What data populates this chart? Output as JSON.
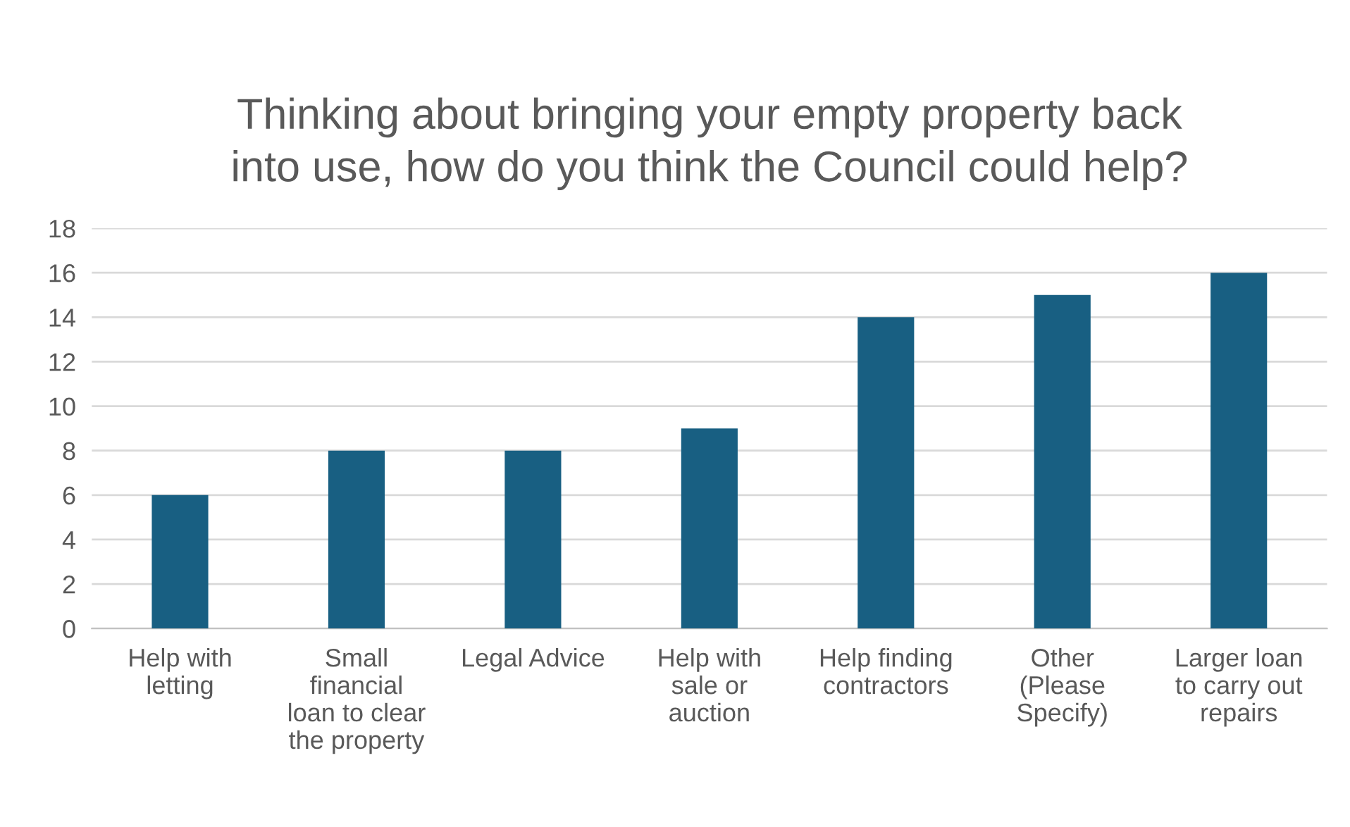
{
  "chart_data": {
    "type": "bar",
    "title": "Thinking about bringing your empty property back\ninto use, how do you think the Council could help?",
    "categories": [
      "Help with\nletting",
      "Small\nfinancial\nloan to clear\nthe property",
      "Legal Advice",
      "Help with\nsale or\nauction",
      "Help finding\ncontractors",
      "Other\n(Please\nSpecify)",
      "Larger loan\nto carry out\nrepairs"
    ],
    "values": [
      6,
      8,
      8,
      9,
      14,
      15,
      16
    ],
    "color": "#185f82",
    "ylim": [
      0,
      18
    ],
    "yticks": [
      0,
      2,
      4,
      6,
      8,
      10,
      12,
      14,
      16,
      18
    ],
    "grid": "y"
  }
}
